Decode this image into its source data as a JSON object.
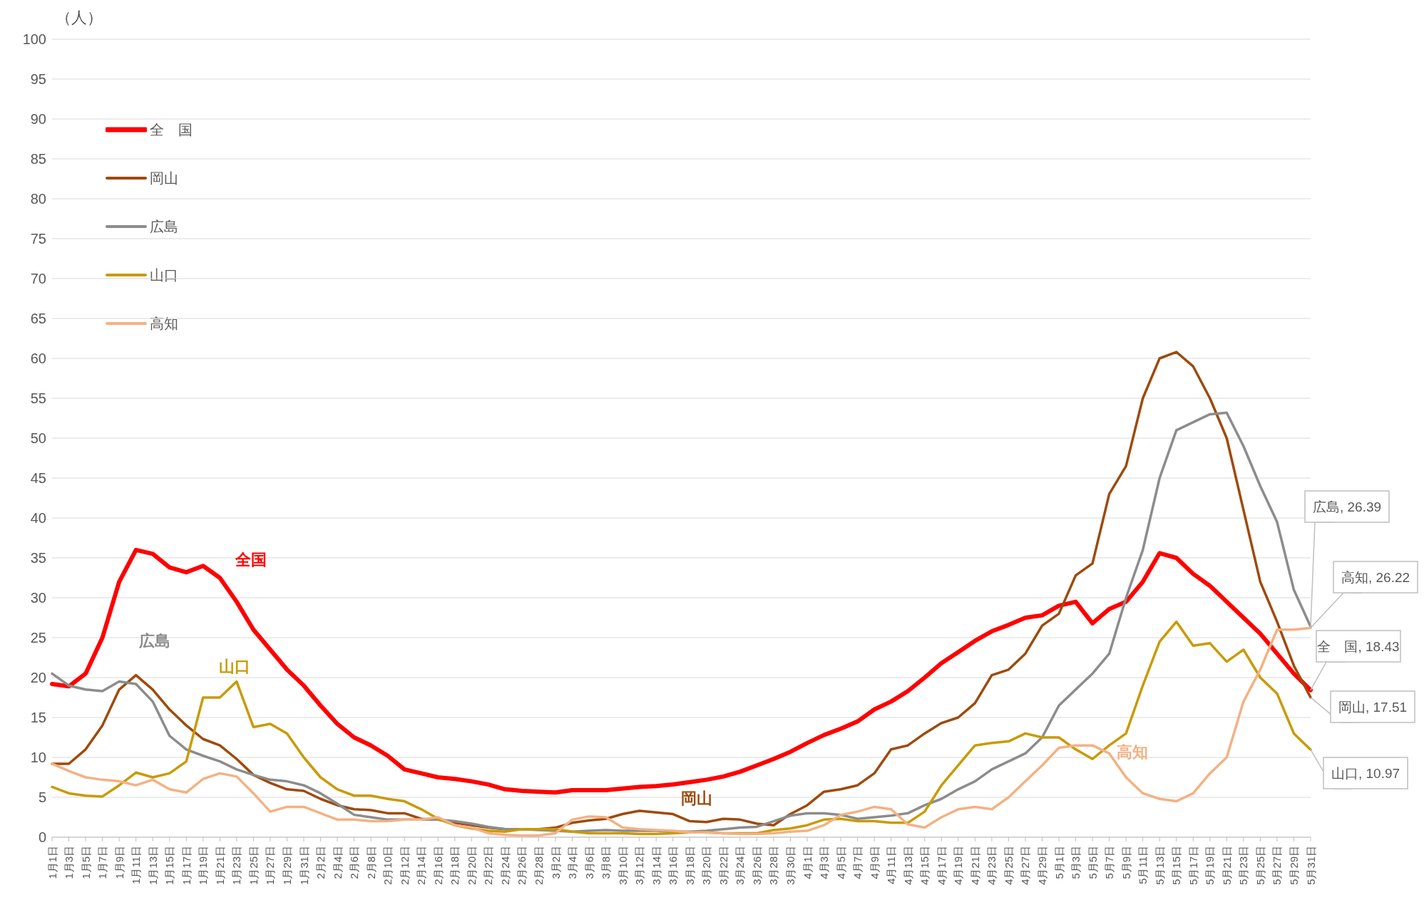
{
  "chart_data": {
    "type": "line",
    "ylabel": "（人）",
    "ylim": [
      0,
      100
    ],
    "yticks": [
      0,
      5,
      10,
      15,
      20,
      25,
      30,
      35,
      40,
      45,
      50,
      55,
      60,
      65,
      70,
      75,
      80,
      85,
      90,
      95,
      100
    ],
    "grid": "y",
    "legend": "top left",
    "categories": [
      "1月1日",
      "1月3日",
      "1月5日",
      "1月7日",
      "1月9日",
      "1月11日",
      "1月13日",
      "1月15日",
      "1月17日",
      "1月19日",
      "1月21日",
      "1月23日",
      "1月25日",
      "1月27日",
      "1月29日",
      "1月31日",
      "2月2日",
      "2月4日",
      "2月6日",
      "2月8日",
      "2月10日",
      "2月12日",
      "2月14日",
      "2月16日",
      "2月18日",
      "2月20日",
      "2月22日",
      "2月24日",
      "2月26日",
      "2月28日",
      "3月2日",
      "3月4日",
      "3月6日",
      "3月8日",
      "3月10日",
      "3月12日",
      "3月14日",
      "3月16日",
      "3月18日",
      "3月20日",
      "3月22日",
      "3月24日",
      "3月26日",
      "3月28日",
      "3月30日",
      "4月1日",
      "4月3日",
      "4月5日",
      "4月7日",
      "4月9日",
      "4月11日",
      "4月13日",
      "4月15日",
      "4月17日",
      "4月19日",
      "4月21日",
      "4月23日",
      "4月25日",
      "4月27日",
      "4月29日",
      "5月1日",
      "5月3日",
      "5月5日",
      "5月7日",
      "5月9日",
      "5月11日",
      "5月13日",
      "5月15日",
      "5月17日",
      "5月19日",
      "5月21日",
      "5月23日",
      "5月25日",
      "5月27日",
      "5月29日",
      "5月31日"
    ],
    "series": [
      {
        "name": "全　国",
        "color": "#ff0000",
        "values": [
          19.2,
          18.9,
          20.5,
          25,
          32,
          36,
          35.5,
          33.8,
          33.2,
          34,
          32.5,
          29.5,
          26,
          23.5,
          21,
          19,
          16.5,
          14.2,
          12.5,
          11.5,
          10.2,
          8.5,
          8,
          7.5,
          7.3,
          7,
          6.6,
          6,
          5.8,
          5.7,
          5.6,
          5.9,
          5.9,
          5.9,
          6.1,
          6.3,
          6.4,
          6.6,
          6.9,
          7.2,
          7.6,
          8.2,
          9,
          9.8,
          10.7,
          11.8,
          12.8,
          13.6,
          14.5,
          16,
          17,
          18.3,
          20,
          21.8,
          23.2,
          24.6,
          25.8,
          26.6,
          27.5,
          27.8,
          29,
          29.5,
          26.8,
          28.6,
          29.5,
          32,
          35.6,
          35,
          33,
          31.5,
          29.5,
          27.5,
          25.5,
          23,
          20.5,
          18.43
        ]
      },
      {
        "name": "岡山",
        "color": "#9e4a0c",
        "values": [
          9.2,
          9.2,
          11,
          14,
          18.5,
          20.3,
          18.5,
          16,
          14,
          12.3,
          11.5,
          9.8,
          7.8,
          6.8,
          6,
          5.8,
          4.8,
          4,
          3.5,
          3.4,
          3,
          3,
          2.3,
          2.2,
          1.8,
          1.5,
          1.2,
          1,
          1,
          1,
          1.2,
          1.8,
          2.1,
          2.3,
          2.9,
          3.3,
          3.1,
          2.9,
          2,
          1.9,
          2.3,
          2.2,
          1.7,
          1.5,
          2.9,
          4,
          5.7,
          6,
          6.5,
          8,
          11,
          11.5,
          13,
          14.3,
          15,
          16.8,
          20.3,
          21,
          23,
          26.5,
          28,
          32.8,
          34.3,
          43,
          46.5,
          55,
          60,
          60.8,
          59,
          55,
          50,
          41,
          32,
          27,
          21.5,
          17.51
        ]
      },
      {
        "name": "広島",
        "color": "#8c8c8c",
        "values": [
          20.5,
          19,
          18.5,
          18.3,
          19.5,
          19.2,
          17,
          12.7,
          11,
          10.2,
          9.5,
          8.5,
          7.8,
          7.2,
          7,
          6.5,
          5.5,
          4.2,
          2.8,
          2.5,
          2.2,
          2.2,
          2.2,
          2.2,
          2,
          1.7,
          1.3,
          1,
          1,
          0.9,
          0.8,
          0.7,
          0.8,
          0.9,
          0.8,
          0.8,
          0.8,
          0.7,
          0.7,
          0.8,
          1,
          1.2,
          1.3,
          2,
          2.7,
          3,
          3,
          2.8,
          2.3,
          2.5,
          2.7,
          3,
          4,
          4.8,
          6,
          7,
          8.5,
          9.5,
          10.5,
          12.5,
          16.5,
          18.5,
          20.5,
          23,
          30,
          36,
          45,
          51,
          52,
          53,
          53.2,
          49,
          44,
          39.5,
          31,
          26.39
        ]
      },
      {
        "name": "山口",
        "color": "#c99a06",
        "values": [
          6.3,
          5.5,
          5.2,
          5.1,
          6.5,
          8.1,
          7.5,
          8,
          9.5,
          17.5,
          17.5,
          19.5,
          13.8,
          14.2,
          13,
          10,
          7.5,
          6,
          5.2,
          5.2,
          4.8,
          4.5,
          3.5,
          2.3,
          1.5,
          1.1,
          0.8,
          0.7,
          1,
          1,
          1,
          0.7,
          0.5,
          0.5,
          0.5,
          0.4,
          0.4,
          0.5,
          0.6,
          0.6,
          0.5,
          0.5,
          0.5,
          0.9,
          1.1,
          1.5,
          2.2,
          2.3,
          2,
          2,
          1.8,
          1.8,
          3.2,
          6.5,
          9,
          11.5,
          11.8,
          12,
          13,
          12.5,
          12.5,
          11,
          9.8,
          11.5,
          13,
          19,
          24.5,
          27,
          24,
          24.3,
          22,
          23.5,
          20,
          18,
          13,
          10.97
        ]
      },
      {
        "name": "高知",
        "color": "#f4b183",
        "values": [
          9.2,
          8.3,
          7.5,
          7.2,
          7,
          6.5,
          7.2,
          6,
          5.6,
          7.3,
          8,
          7.6,
          5.5,
          3.2,
          3.8,
          3.8,
          3,
          2.2,
          2.2,
          2,
          2,
          2.2,
          2.2,
          2.5,
          1.5,
          1.2,
          0.5,
          0.3,
          0.2,
          0.2,
          0.5,
          2.2,
          2.6,
          2.5,
          1.2,
          1,
          0.9,
          0.8,
          0.6,
          0.6,
          0.5,
          0.4,
          0.4,
          0.5,
          0.7,
          0.8,
          1.5,
          2.8,
          3.2,
          3.8,
          3.5,
          1.6,
          1.2,
          2.5,
          3.5,
          3.8,
          3.5,
          5,
          7,
          9,
          11.2,
          11.5,
          11.5,
          10.5,
          7.5,
          5.5,
          4.8,
          4.5,
          5.5,
          8,
          10,
          17,
          21,
          26,
          26,
          26.22
        ]
      }
    ],
    "annotations": [
      "全国",
      "岡山",
      "広島",
      "山口",
      "高知",
      {
        "text": "広島, 26.39",
        "x": "5月31日",
        "y": 26.39
      },
      {
        "text": "高知, 26.22",
        "x": "5月31日",
        "y": 26.22
      },
      {
        "text": "全　国, 18.43",
        "x": "5月31日",
        "y": 18.43
      },
      {
        "text": "岡山, 17.51",
        "x": "5月31日",
        "y": 17.51
      },
      {
        "text": "山口, 10.97",
        "x": "5月31日",
        "y": 10.97
      }
    ]
  }
}
